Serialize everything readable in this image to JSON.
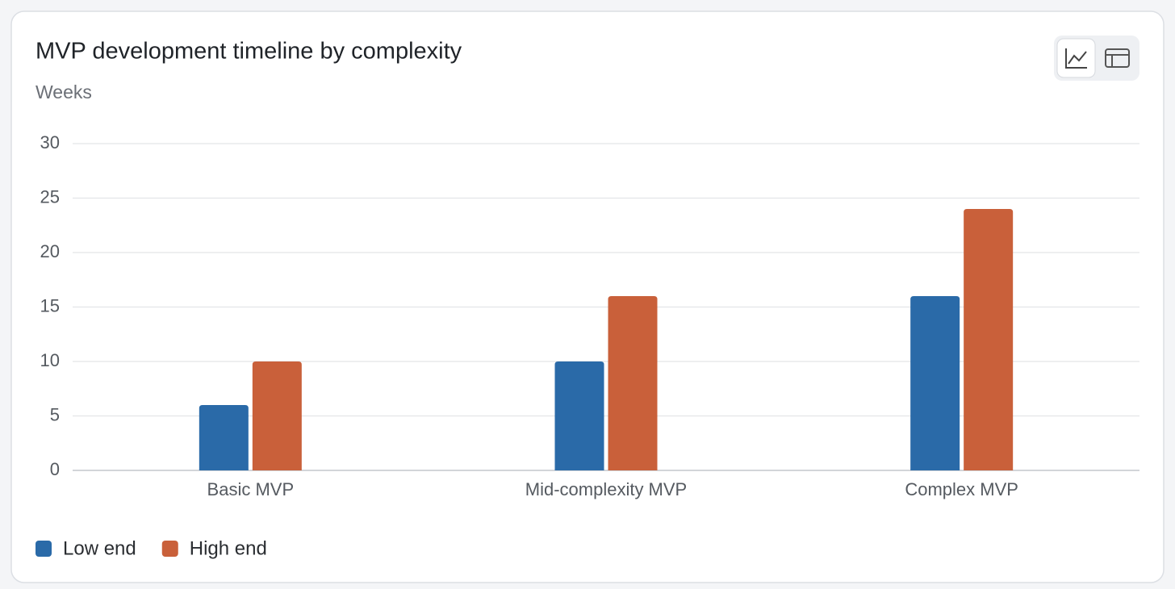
{
  "chart_data": {
    "type": "bar",
    "title": "MVP development timeline by complexity",
    "y_label": "Weeks",
    "categories": [
      "Basic MVP",
      "Mid-complexity MVP",
      "Complex MVP"
    ],
    "series": [
      {
        "name": "Low end",
        "color": "#2a6aa8",
        "values": [
          6,
          10,
          16
        ]
      },
      {
        "name": "High end",
        "color": "#c9603a",
        "values": [
          10,
          16,
          24
        ]
      }
    ],
    "ylim": [
      0,
      30
    ],
    "yticks": [
      0,
      5,
      10,
      15,
      20,
      25,
      30
    ],
    "grid": true,
    "legend": "bottom-left"
  }
}
